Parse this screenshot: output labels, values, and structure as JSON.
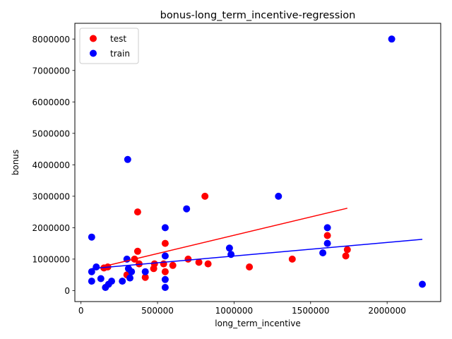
{
  "chart_data": {
    "type": "scatter",
    "title": "bonus-long_term_incentive-regression",
    "xlabel": "long_term_incentive",
    "ylabel": "bonus",
    "xlim": [
      -40000,
      2350000
    ],
    "ylim": [
      -350000,
      8500000
    ],
    "x_ticks": [
      0,
      500000,
      1000000,
      1500000,
      2000000
    ],
    "x_tick_labels": [
      "0",
      "500000",
      "1000000",
      "1500000",
      "2000000"
    ],
    "y_ticks": [
      0,
      1000000,
      2000000,
      3000000,
      4000000,
      5000000,
      6000000,
      7000000,
      8000000
    ],
    "y_tick_labels": [
      "0",
      "1000000",
      "2000000",
      "3000000",
      "4000000",
      "5000000",
      "6000000",
      "7000000",
      "8000000"
    ],
    "grid": false,
    "legend_position": "top-left",
    "series": [
      {
        "name": "test",
        "color": "#ff0000",
        "points": [
          [
            150000,
            720000
          ],
          [
            175000,
            750000
          ],
          [
            300000,
            500000
          ],
          [
            350000,
            1000000
          ],
          [
            370000,
            1250000
          ],
          [
            370000,
            2500000
          ],
          [
            380000,
            850000
          ],
          [
            420000,
            420000
          ],
          [
            475000,
            700000
          ],
          [
            480000,
            850000
          ],
          [
            540000,
            850000
          ],
          [
            550000,
            1500000
          ],
          [
            550000,
            600000
          ],
          [
            600000,
            800000
          ],
          [
            700000,
            1000000
          ],
          [
            770000,
            900000
          ],
          [
            810000,
            3000000
          ],
          [
            830000,
            850000
          ],
          [
            1100000,
            750000
          ],
          [
            1380000,
            1000000
          ],
          [
            1610000,
            1750000
          ],
          [
            1730000,
            1100000
          ],
          [
            1740000,
            1300000
          ]
        ]
      },
      {
        "name": "train",
        "color": "#0000ff",
        "points": [
          [
            70000,
            1700000
          ],
          [
            70000,
            600000
          ],
          [
            70000,
            300000
          ],
          [
            100000,
            750000
          ],
          [
            130000,
            380000
          ],
          [
            160000,
            100000
          ],
          [
            180000,
            200000
          ],
          [
            200000,
            300000
          ],
          [
            270000,
            300000
          ],
          [
            300000,
            1000000
          ],
          [
            305000,
            4170000
          ],
          [
            310000,
            700000
          ],
          [
            320000,
            400000
          ],
          [
            330000,
            600000
          ],
          [
            420000,
            600000
          ],
          [
            550000,
            2000000
          ],
          [
            550000,
            1100000
          ],
          [
            550000,
            350000
          ],
          [
            550000,
            100000
          ],
          [
            690000,
            2600000
          ],
          [
            970000,
            1350000
          ],
          [
            980000,
            1150000
          ],
          [
            1290000,
            3000000
          ],
          [
            1580000,
            1200000
          ],
          [
            1610000,
            2000000
          ],
          [
            1610000,
            1500000
          ],
          [
            2030000,
            8000000
          ],
          [
            2230000,
            200000
          ]
        ]
      }
    ],
    "regression_lines": [
      {
        "series": "test",
        "color": "#ff0000",
        "x": [
          150000,
          1740000
        ],
        "y": [
          770000,
          2620000
        ]
      },
      {
        "series": "train",
        "color": "#0000ff",
        "x": [
          70000,
          2230000
        ],
        "y": [
          700000,
          1630000
        ]
      }
    ]
  }
}
